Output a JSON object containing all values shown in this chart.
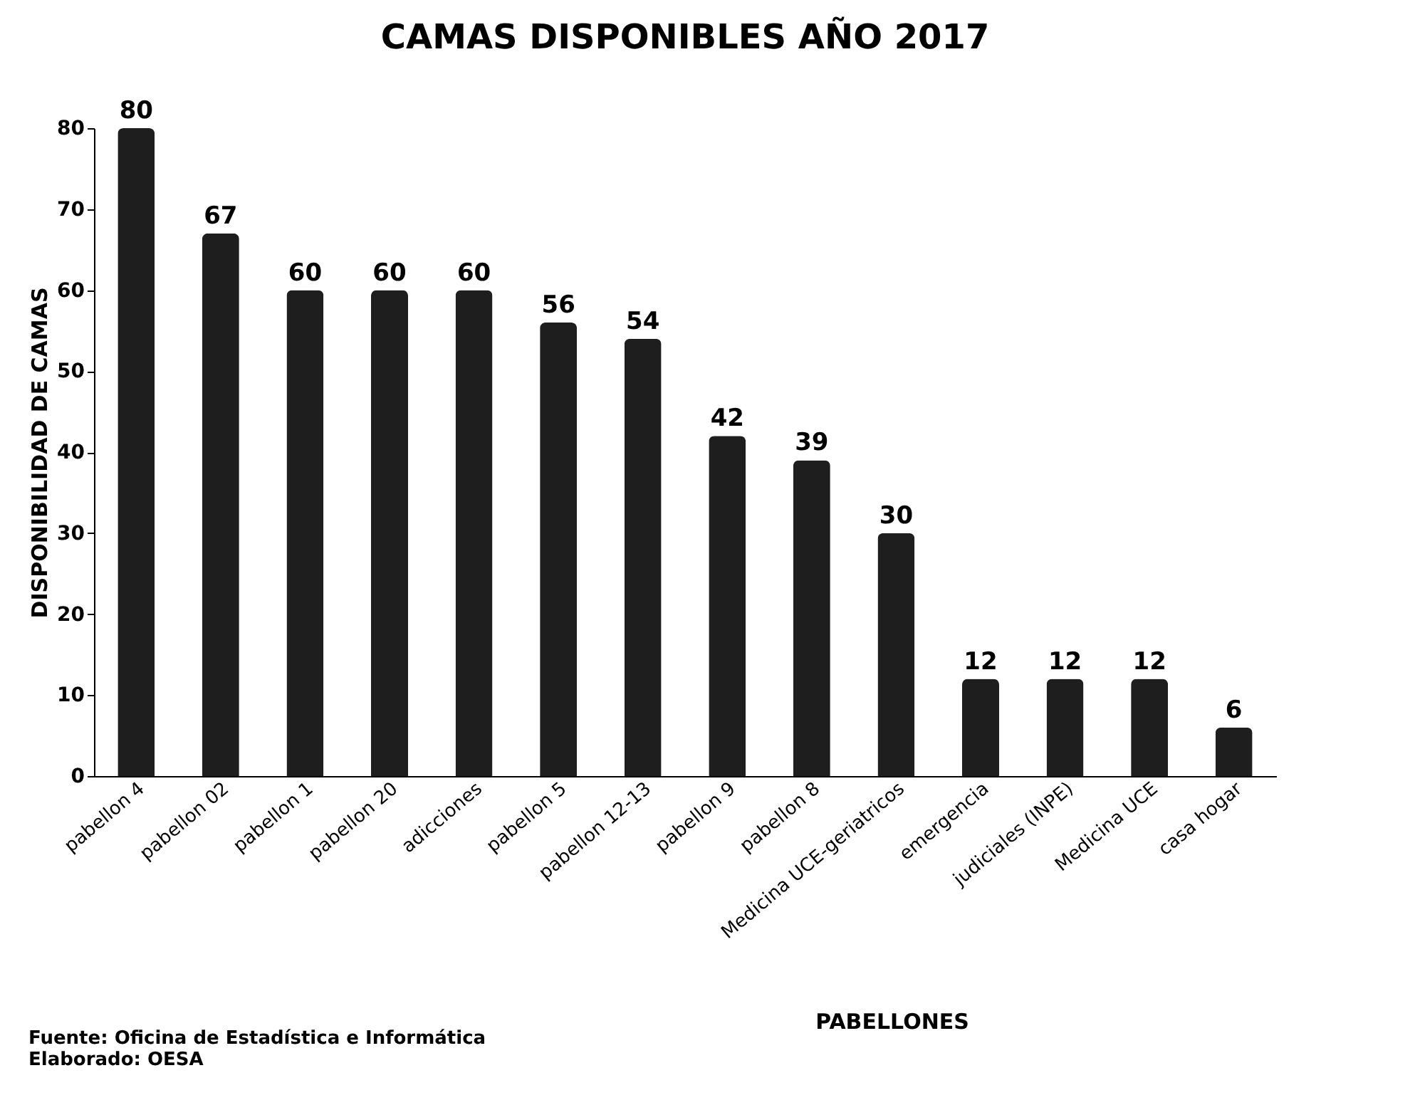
{
  "chart_data": {
    "type": "bar",
    "title": "CAMAS DISPONIBLES AÑO 2017",
    "xlabel": "PABELLONES",
    "ylabel": "DISPONIBILIDAD DE CAMAS",
    "categories": [
      "pabellon 4",
      "pabellon 02",
      "pabellon 1",
      "pabellon 20",
      "adicciones",
      "pabellon 5",
      "pabellon 12-13",
      "pabellon 9",
      "pabellon 8",
      "Medicina UCE-geriatricos",
      "emergencia",
      "judiciales (INPE)",
      "Medicina UCE",
      "casa hogar"
    ],
    "values": [
      80,
      67,
      60,
      60,
      60,
      56,
      54,
      42,
      39,
      30,
      12,
      12,
      12,
      6
    ],
    "color": "#1e1e1e",
    "ylim": [
      0,
      80
    ],
    "yticks": [
      0,
      10,
      20,
      30,
      40,
      50,
      60,
      70,
      80
    ],
    "grid": false,
    "data_labels": true,
    "annotations": [
      "Fuente: Oficina de Estadística e Informática",
      "Elaborado: OESA"
    ]
  }
}
